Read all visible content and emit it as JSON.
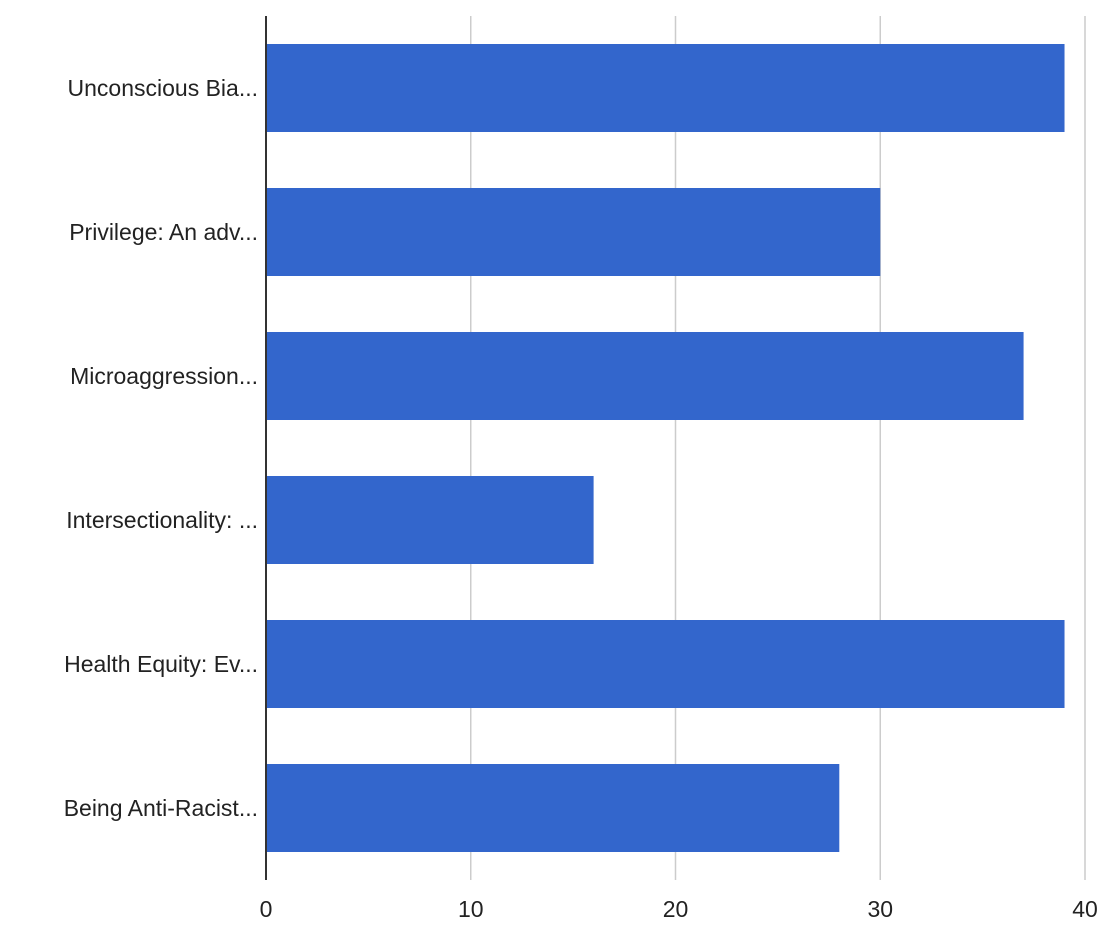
{
  "chart_data": {
    "type": "bar",
    "orientation": "horizontal",
    "categories": [
      "Unconscious Bia...",
      "Privilege: An adv...",
      "Microaggression...",
      "Intersectionality: ...",
      "Health Equity: Ev...",
      "Being Anti-Racist..."
    ],
    "values": [
      39,
      30,
      37,
      16,
      39,
      28
    ],
    "x_ticks": [
      "0",
      "10",
      "20",
      "30",
      "40"
    ],
    "xlim": [
      0,
      40
    ],
    "title": "",
    "xlabel": "",
    "ylabel": "",
    "grid": true,
    "legend": "none",
    "colors": {
      "bar": "#3366cc",
      "grid": "#cccccc",
      "axis": "#333333",
      "text": "#222222"
    }
  }
}
